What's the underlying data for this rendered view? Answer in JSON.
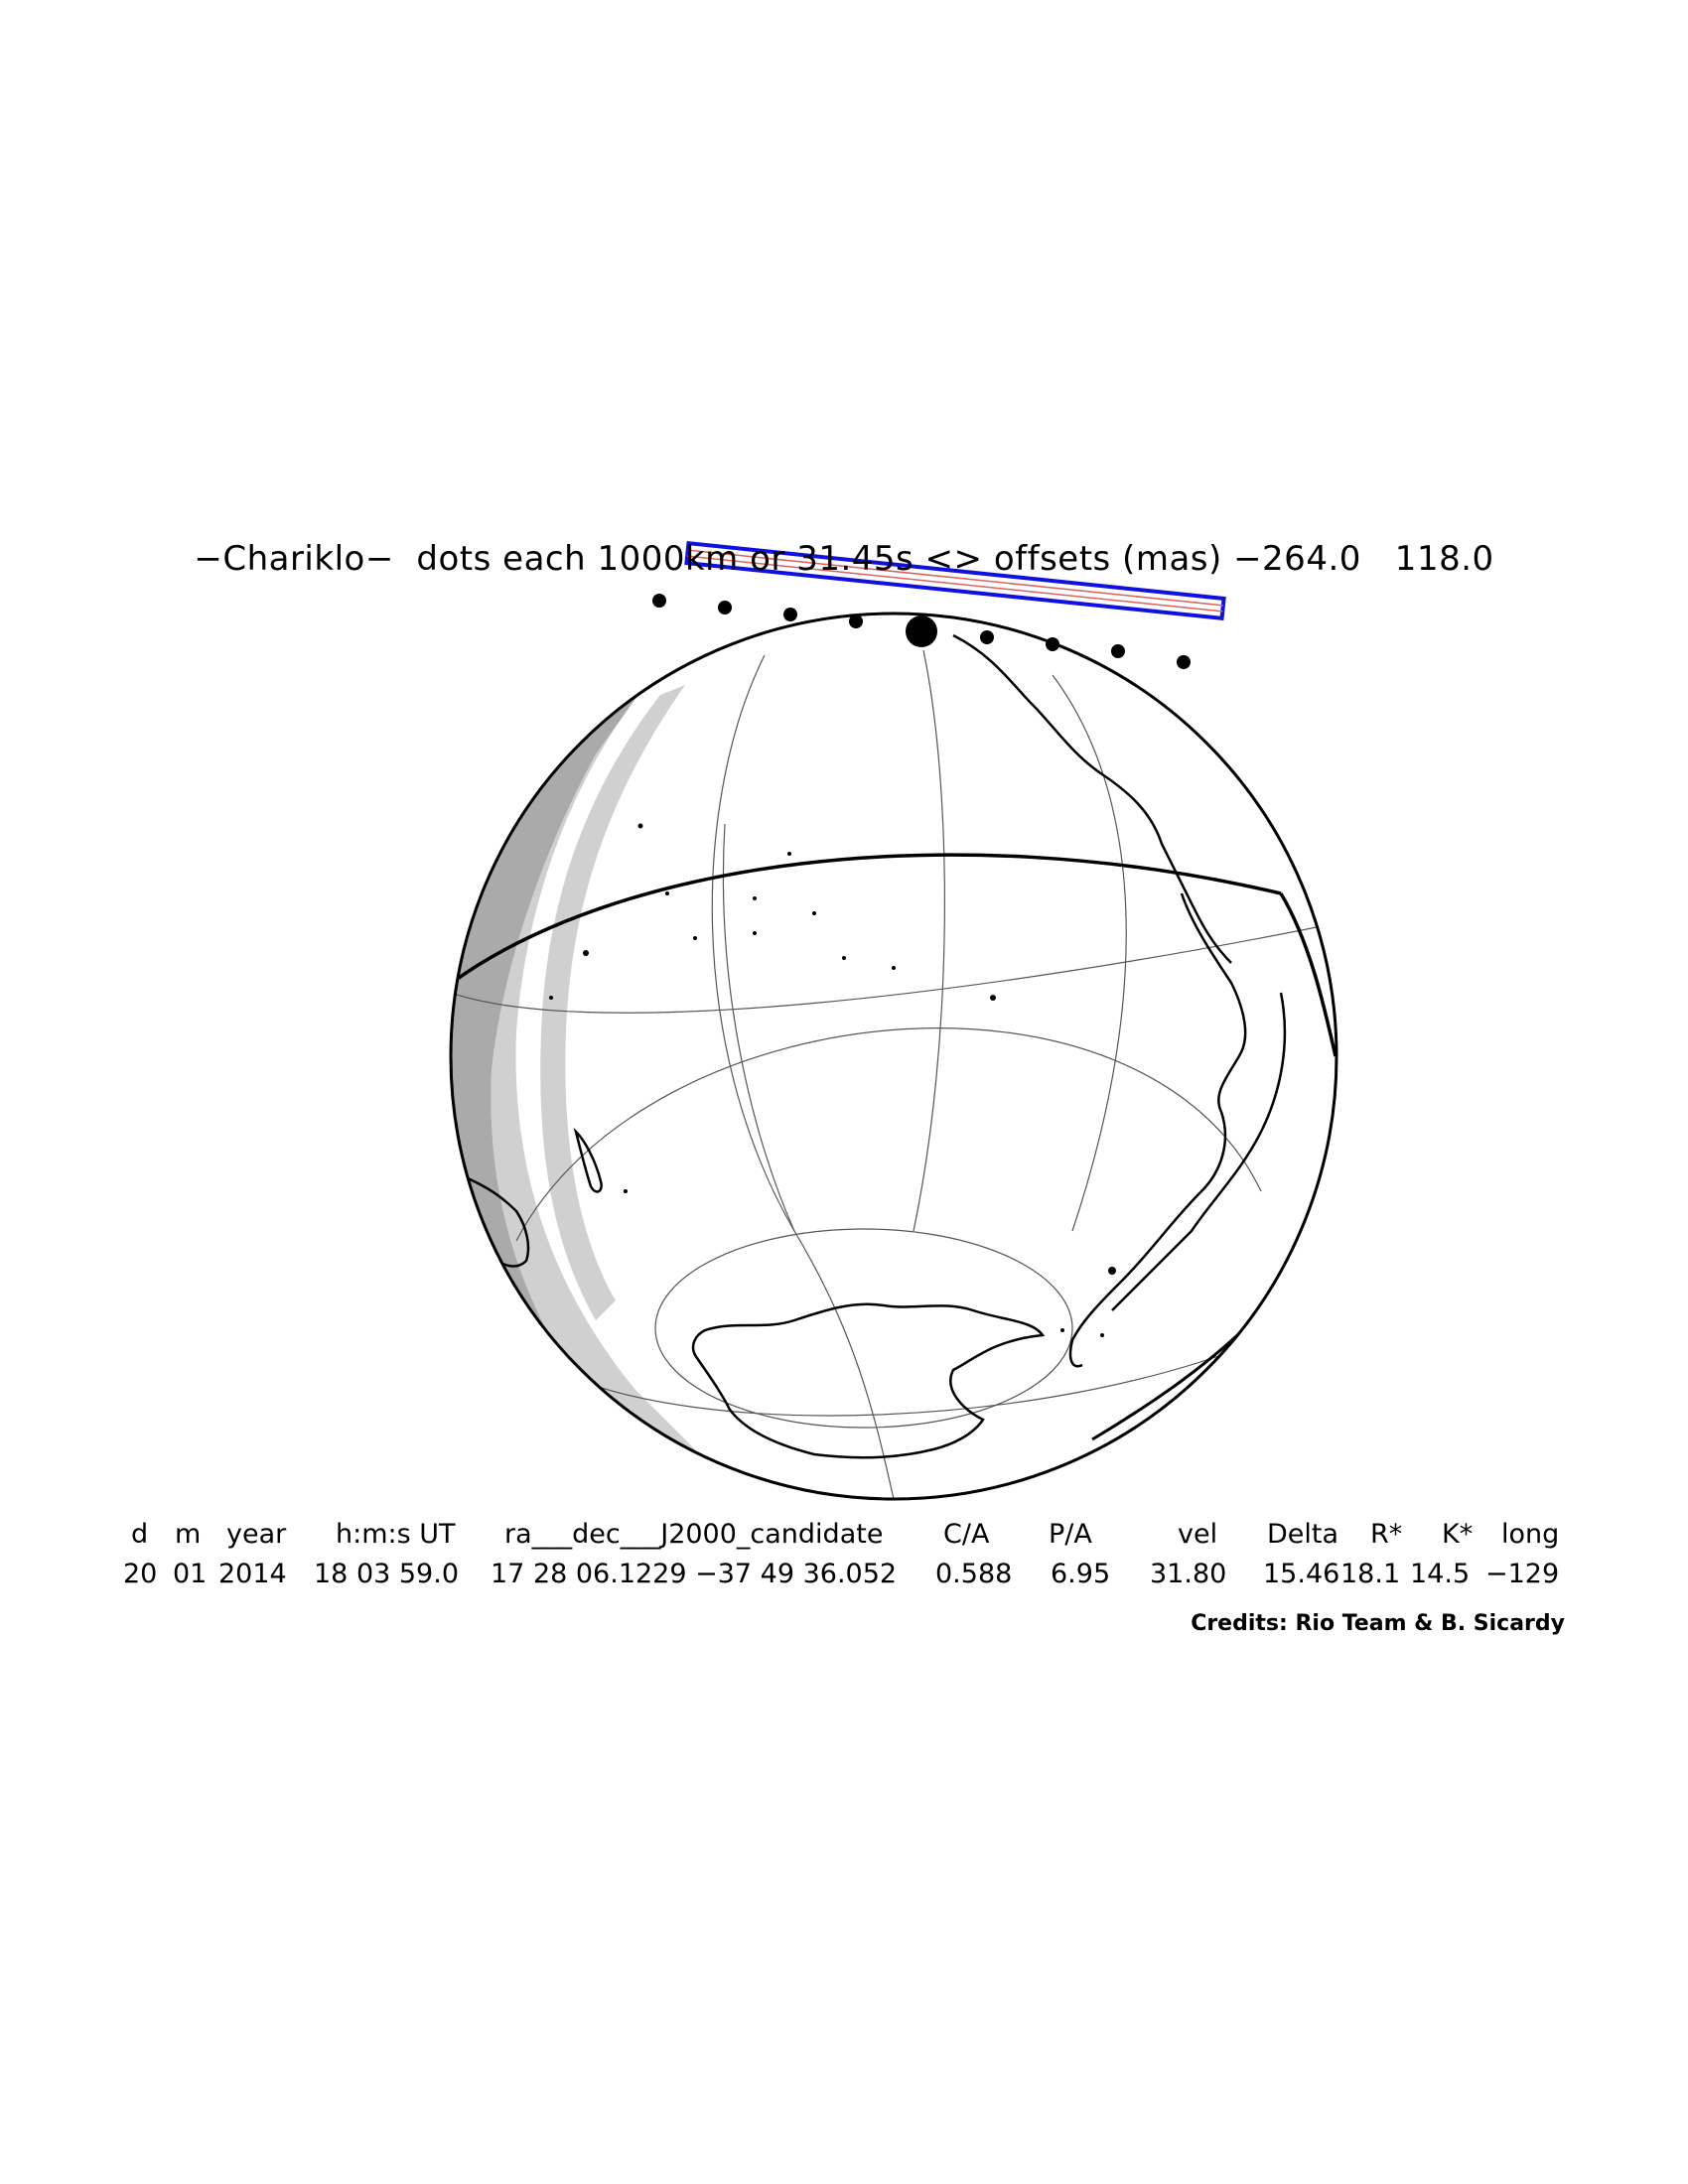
{
  "title": "−Chariklo−  dots each 1000km or 31.45s <> offsets (mas) −264.0   118.0",
  "table": {
    "headers": [
      "d",
      "m",
      "year",
      "h:m:s UT",
      "ra___dec___J2000_candidate",
      "C/A",
      "P/A",
      "vel",
      "Delta",
      "R*",
      "K*",
      "long"
    ],
    "values": [
      "20",
      "01",
      "2014",
      "18 03 59.0",
      "17 28 06.1229 −37 49 36.052",
      "0.588",
      "6.95",
      "31.80",
      "15.46",
      "18.1",
      "14.5",
      "−129"
    ]
  },
  "credits": "Credits: Rio Team & B. Sicardy",
  "colors": {
    "path_band": "#1010e0",
    "center_line": "#e06060",
    "shadow_dark": "#aaaaaa",
    "shadow_light": "#d0d0d0"
  },
  "path_dot_count": 9
}
